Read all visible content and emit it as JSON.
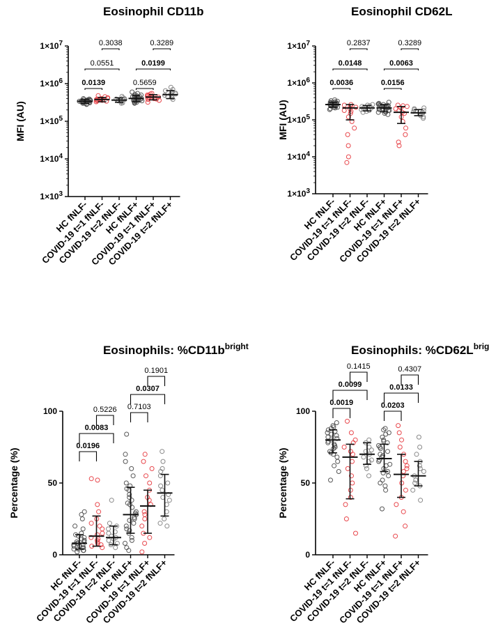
{
  "figure": {
    "panels": 4
  },
  "chart_data": [
    {
      "type": "scatter",
      "title": "Eosinophil CD11b",
      "title_superscript": "",
      "ylabel": "MFI (AU)",
      "yscale": "log",
      "ylim": [
        1000,
        10000000
      ],
      "yticks": [
        1000,
        10000,
        100000,
        1000000,
        10000000
      ],
      "ytick_base": [
        "1×10",
        "1×10",
        "1×10",
        "1×10",
        "1×10"
      ],
      "ytick_exp": [
        "3",
        "4",
        "5",
        "6",
        "7"
      ],
      "categories": [
        "HC fNLF-",
        "COVID-19 t=1 fNLF-",
        "COVID-19 t=2 fNLF-",
        "HC fNLF+",
        "COVID-19 t=1 fNLF+",
        "COVID-19 t=2 fNLF+"
      ],
      "series_colors": [
        "#555555",
        "#e8474c",
        "#888888",
        "#555555",
        "#e8474c",
        "#888888"
      ],
      "groups": [
        {
          "points": [
            330000,
            350000,
            370000,
            310000,
            290000,
            340000,
            360000,
            380000,
            320000,
            300000,
            350000,
            330000,
            400000,
            280000,
            360000,
            340000,
            310000,
            370000,
            390000,
            330000,
            350000,
            300000,
            320000,
            360000,
            340000
          ],
          "center": 340000,
          "low": 300000,
          "high": 385000
        },
        {
          "points": [
            330000,
            390000,
            400000,
            360000,
            450000,
            370000,
            410000,
            350000,
            380000,
            480000,
            340000,
            420000,
            390000,
            360000
          ],
          "center": 380000,
          "low": 330000,
          "high": 430000
        },
        {
          "points": [
            300000,
            360000,
            380000,
            330000,
            420000,
            350000,
            400000,
            460000,
            340000,
            370000,
            310000,
            390000
          ],
          "center": 365000,
          "low": 320000,
          "high": 420000
        },
        {
          "points": [
            300000,
            380000,
            420000,
            450000,
            500000,
            350000,
            400000,
            520000,
            330000,
            470000,
            410000,
            390000,
            440000,
            360000,
            480000,
            320000,
            430000,
            380000,
            400000,
            460000,
            350000,
            410000,
            550000,
            370000,
            420000,
            390000,
            340000,
            600000,
            310000,
            450000
          ],
          "center": 405000,
          "low": 330000,
          "high": 480000
        },
        {
          "points": [
            320000,
            380000,
            420000,
            460000,
            500000,
            400000,
            440000,
            480000,
            360000,
            530000,
            410000,
            390000,
            550000,
            430000,
            470000
          ],
          "center": 440000,
          "low": 370000,
          "high": 510000
        },
        {
          "points": [
            380000,
            450000,
            520000,
            600000,
            650000,
            480000,
            560000,
            700000,
            420000,
            530000,
            800000,
            490000
          ],
          "center": 510000,
          "low": 400000,
          "high": 650000
        }
      ],
      "comparisons": [
        {
          "g1": 0,
          "g2": 1,
          "label": "0.0139",
          "significant": true
        },
        {
          "g1": 0,
          "g2": 2,
          "label": "0.0551",
          "significant": false
        },
        {
          "g1": 1,
          "g2": 2,
          "label": "0.3038",
          "significant": false
        },
        {
          "g1": 3,
          "g2": 4,
          "label": "0.5659",
          "significant": false
        },
        {
          "g1": 3,
          "g2": 5,
          "label": "0.0199",
          "significant": true
        },
        {
          "g1": 4,
          "g2": 5,
          "label": "0.3289",
          "significant": false
        }
      ]
    },
    {
      "type": "scatter",
      "title": "Eosinophil CD62L",
      "title_superscript": "",
      "ylabel": "MFI (AU)",
      "yscale": "log",
      "ylim": [
        1000,
        10000000
      ],
      "yticks": [
        1000,
        10000,
        100000,
        1000000,
        10000000
      ],
      "ytick_base": [
        "1×10",
        "1×10",
        "1×10",
        "1×10",
        "1×10"
      ],
      "ytick_exp": [
        "3",
        "4",
        "5",
        "6",
        "7"
      ],
      "categories": [
        "HC fNLF-",
        "COVID-19 t=1 fNLF-",
        "COVID-19 t=2 fNLF-",
        "HC fNLF+",
        "COVID-19 t=1 fNLF+",
        "COVID-19 t=2 fNLF+"
      ],
      "series_colors": [
        "#555555",
        "#e8474c",
        "#888888",
        "#555555",
        "#e8474c",
        "#888888"
      ],
      "groups": [
        {
          "points": [
            250000,
            280000,
            300000,
            220000,
            200000,
            260000,
            320000,
            350000,
            240000,
            210000,
            290000,
            270000,
            230000,
            310000,
            260000,
            280000,
            190000,
            250000,
            300000,
            240000,
            270000,
            220000,
            330000,
            260000,
            290000
          ],
          "center": 260000,
          "low": 220000,
          "high": 300000
        },
        {
          "points": [
            220000,
            250000,
            180000,
            150000,
            120000,
            90000,
            60000,
            40000,
            20000,
            10000,
            7000,
            230000,
            200000,
            260000,
            170000
          ],
          "center": 210000,
          "low": 100000,
          "high": 260000
        },
        {
          "points": [
            180000,
            220000,
            250000,
            200000,
            170000,
            240000,
            210000,
            260000,
            190000,
            230000,
            160000
          ],
          "center": 210000,
          "low": 175000,
          "high": 245000
        },
        {
          "points": [
            200000,
            230000,
            260000,
            180000,
            150000,
            210000,
            240000,
            170000,
            220000,
            250000,
            190000,
            280000,
            160000,
            230000,
            200000,
            270000,
            140000,
            210000,
            250000,
            180000,
            220000,
            300000,
            190000,
            240000,
            160000,
            210000,
            260000,
            230000
          ],
          "center": 210000,
          "low": 165000,
          "high": 260000
        },
        {
          "points": [
            200000,
            240000,
            160000,
            120000,
            90000,
            60000,
            40000,
            25000,
            20000,
            210000,
            230000,
            180000,
            150000,
            250000
          ],
          "center": 160000,
          "low": 80000,
          "high": 230000
        },
        {
          "points": [
            130000,
            150000,
            170000,
            200000,
            140000,
            180000,
            160000,
            120000,
            210000,
            190000,
            110000
          ],
          "center": 155000,
          "low": 130000,
          "high": 190000
        }
      ],
      "comparisons": [
        {
          "g1": 0,
          "g2": 1,
          "label": "0.0036",
          "significant": true
        },
        {
          "g1": 0,
          "g2": 2,
          "label": "0.0148",
          "significant": true
        },
        {
          "g1": 1,
          "g2": 2,
          "label": "0.2837",
          "significant": false
        },
        {
          "g1": 3,
          "g2": 4,
          "label": "0.0156",
          "significant": true
        },
        {
          "g1": 3,
          "g2": 5,
          "label": "0.0063",
          "significant": true
        },
        {
          "g1": 4,
          "g2": 5,
          "label": "0.3289",
          "significant": false
        }
      ]
    },
    {
      "type": "scatter",
      "title": "Eosinophils: %CD11b",
      "title_superscript": "bright",
      "ylabel": "Percentage (%)",
      "yscale": "linear",
      "ylim": [
        0,
        100
      ],
      "yticks": [
        0,
        50,
        100
      ],
      "ytick_base": [
        "0",
        "50",
        "100"
      ],
      "ytick_exp": [
        "",
        "",
        ""
      ],
      "categories": [
        "HC fNLF-",
        "COVID-19 t=1 fNLF-",
        "COVID-19 t=2 fNLF-",
        "HC fNLF+",
        "COVID-19 t=1 fNLF+",
        "COVID-19 t=2 fNLF+"
      ],
      "series_colors": [
        "#555555",
        "#e8474c",
        "#888888",
        "#555555",
        "#e8474c",
        "#888888"
      ],
      "groups": [
        {
          "points": [
            2,
            4,
            6,
            8,
            10,
            12,
            5,
            3,
            7,
            9,
            15,
            18,
            20,
            25,
            28,
            30,
            6,
            4,
            11,
            13,
            8,
            5,
            3,
            10,
            7,
            14,
            9
          ],
          "center": 8,
          "low": 4,
          "high": 14
        },
        {
          "points": [
            5,
            8,
            10,
            12,
            15,
            18,
            20,
            25,
            30,
            35,
            52,
            53,
            7,
            11,
            14,
            6,
            22,
            9
          ],
          "center": 13,
          "low": 6,
          "high": 27
        },
        {
          "points": [
            5,
            8,
            10,
            12,
            15,
            18,
            20,
            22,
            38,
            7,
            11,
            13,
            16
          ],
          "center": 12,
          "low": 7,
          "high": 20
        },
        {
          "points": [
            3,
            8,
            10,
            15,
            18,
            20,
            22,
            25,
            28,
            30,
            35,
            38,
            40,
            42,
            45,
            48,
            50,
            55,
            60,
            65,
            70,
            84,
            12,
            26,
            33,
            5,
            17,
            24,
            46,
            36,
            29
          ],
          "center": 28,
          "low": 15,
          "high": 47
        },
        {
          "points": [
            2,
            8,
            15,
            20,
            25,
            30,
            35,
            40,
            45,
            50,
            55,
            60,
            65,
            70,
            28,
            38,
            12
          ],
          "center": 34,
          "low": 15,
          "high": 45
        },
        {
          "points": [
            20,
            25,
            30,
            35,
            40,
            45,
            50,
            55,
            60,
            65,
            72,
            22,
            38,
            48,
            58,
            42
          ],
          "center": 43,
          "low": 27,
          "high": 56
        }
      ],
      "comparisons": [
        {
          "g1": 0,
          "g2": 1,
          "label": "0.0196",
          "significant": true
        },
        {
          "g1": 0,
          "g2": 2,
          "label": "0.0083",
          "significant": true
        },
        {
          "g1": 1,
          "g2": 2,
          "label": "0.5226",
          "significant": false
        },
        {
          "g1": 3,
          "g2": 4,
          "label": "0.7103",
          "significant": false
        },
        {
          "g1": 3,
          "g2": 5,
          "label": "0.0307",
          "significant": true
        },
        {
          "g1": 4,
          "g2": 5,
          "label": "0.1901",
          "significant": false
        }
      ]
    },
    {
      "type": "scatter",
      "title": "Eosinophils: %CD62L",
      "title_superscript": "bright",
      "ylabel": "Percentage (%)",
      "yscale": "linear",
      "ylim": [
        0,
        100
      ],
      "yticks": [
        0,
        50,
        100
      ],
      "ytick_base": [
        "0",
        "50",
        "100"
      ],
      "ytick_exp": [
        "",
        "",
        ""
      ],
      "categories": [
        "HC fNLF-",
        "COVID-19 t=1 fNLF-",
        "COVID-19 t=2 fNLF-",
        "HC fNLF+",
        "COVID-19 t=1 fNLF+",
        "COVID-19 t=2 fNLF+"
      ],
      "series_colors": [
        "#555555",
        "#e8474c",
        "#888888",
        "#555555",
        "#e8474c",
        "#888888"
      ],
      "groups": [
        {
          "points": [
            52,
            58,
            62,
            65,
            70,
            72,
            75,
            78,
            80,
            82,
            85,
            88,
            90,
            92,
            76,
            84,
            68,
            86,
            79,
            74,
            81,
            87,
            71,
            89,
            83,
            77
          ],
          "center": 80,
          "low": 71,
          "high": 87
        },
        {
          "points": [
            15,
            25,
            35,
            45,
            55,
            60,
            65,
            70,
            75,
            78,
            80,
            85,
            93,
            50,
            40,
            72
          ],
          "center": 68,
          "low": 39,
          "high": 77
        },
        {
          "points": [
            55,
            62,
            65,
            68,
            70,
            72,
            75,
            78,
            80,
            60,
            73,
            66
          ],
          "center": 70,
          "low": 63,
          "high": 78
        },
        {
          "points": [
            32,
            45,
            50,
            55,
            58,
            60,
            62,
            65,
            68,
            70,
            72,
            75,
            78,
            80,
            82,
            85,
            87,
            52,
            63,
            74,
            88,
            57,
            66,
            79,
            84,
            48,
            69,
            76
          ],
          "center": 67,
          "low": 58,
          "high": 77
        },
        {
          "points": [
            13,
            20,
            30,
            40,
            45,
            50,
            55,
            58,
            60,
            65,
            70,
            75,
            80,
            85,
            90,
            35,
            62
          ],
          "center": 56,
          "low": 40,
          "high": 70
        },
        {
          "points": [
            38,
            45,
            50,
            55,
            58,
            62,
            65,
            70,
            75,
            82,
            48,
            60,
            52
          ],
          "center": 55,
          "low": 48,
          "high": 65
        }
      ],
      "comparisons": [
        {
          "g1": 0,
          "g2": 1,
          "label": "0.0019",
          "significant": true
        },
        {
          "g1": 0,
          "g2": 2,
          "label": "0.0099",
          "significant": true
        },
        {
          "g1": 1,
          "g2": 2,
          "label": "0.1415",
          "significant": false
        },
        {
          "g1": 3,
          "g2": 4,
          "label": "0.0203",
          "significant": true
        },
        {
          "g1": 3,
          "g2": 5,
          "label": "0.0133",
          "significant": true
        },
        {
          "g1": 4,
          "g2": 5,
          "label": "0.4307",
          "significant": false
        }
      ]
    }
  ]
}
